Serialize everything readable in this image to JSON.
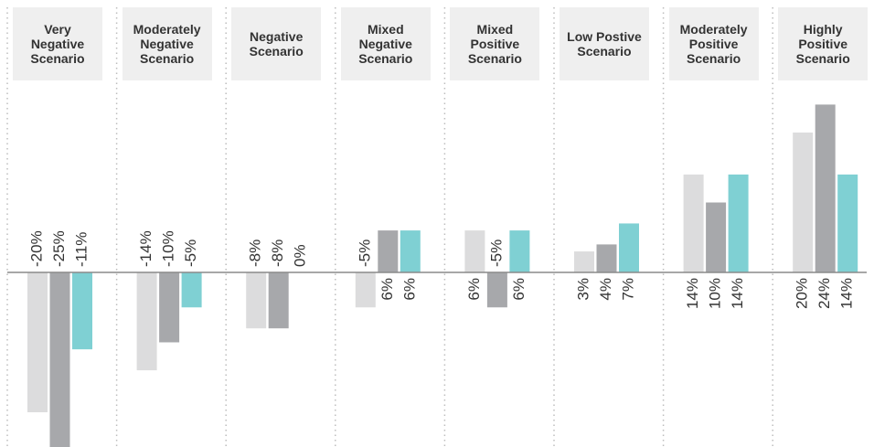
{
  "chart_data": {
    "type": "bar",
    "categories": [
      "Very Negative Scenario",
      "Moderately Negative Scenario",
      "Negative Scenario",
      "Mixed Negative Scenario",
      "Mixed Positive Scenario",
      "Low Postive Scenario",
      "Moderately Positive Scenario",
      "Highly Positive Scenario"
    ],
    "series": [
      {
        "color": "#dcdcdd",
        "values": [
          -20,
          -14,
          -8,
          -5,
          6,
          3,
          14,
          20
        ],
        "value_labels": [
          "-20%",
          "-14%",
          "-8%",
          "-5%",
          "6%",
          "3%",
          "14%",
          "20%"
        ]
      },
      {
        "color": "#a7a8ab",
        "values": [
          -25,
          -10,
          -8,
          6,
          -5,
          4,
          10,
          24
        ],
        "value_labels": [
          "-25%",
          "-10%",
          "-8%",
          "6%",
          "-5%",
          "4%",
          "10%",
          "24%"
        ]
      },
      {
        "color": "#7fd0d3",
        "values": [
          -11,
          -5,
          0,
          6,
          6,
          7,
          14,
          14
        ],
        "value_labels": [
          "-11%",
          "-5%",
          "0%",
          "6%",
          "6%",
          "7%",
          "14%",
          "14%"
        ]
      }
    ]
  }
}
